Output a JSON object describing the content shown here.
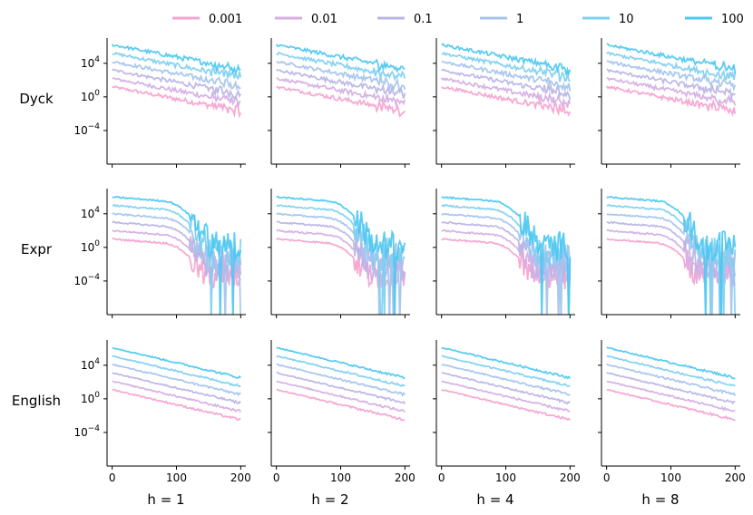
{
  "chart_data": {
    "type": "line",
    "legend": {
      "placement": "top",
      "entries": [
        {
          "name": "0.001",
          "color": "#f5a3cf"
        },
        {
          "name": "0.01",
          "color": "#d4aee3"
        },
        {
          "name": "0.1",
          "color": "#b8b4e6"
        },
        {
          "name": "1",
          "color": "#a4c3ee"
        },
        {
          "name": "10",
          "color": "#7fcff1"
        },
        {
          "name": "100",
          "color": "#4cc8f2"
        }
      ]
    },
    "row_labels": [
      "Dyck",
      "Expr",
      "English"
    ],
    "column_labels": [
      "h = 1",
      "h = 2",
      "h = 4",
      "h = 8"
    ],
    "xlim": [
      -8,
      208
    ],
    "x_ticks": [
      0,
      100,
      200
    ],
    "ylim_log10": [
      -8,
      7
    ],
    "y_ticks": [
      {
        "base": "10",
        "exp": "4",
        "value": 4
      },
      {
        "base": "10",
        "exp": "0",
        "value": 0
      },
      {
        "base": "10",
        "exp": "−4",
        "value": -4
      }
    ],
    "series_offset_log10": [
      0,
      1,
      2,
      3,
      4,
      5
    ],
    "rows": [
      {
        "name": "Dyck",
        "start": 1.2,
        "end": -1.7,
        "noise": 0.7
      },
      {
        "name": "Expr",
        "start": 1.0,
        "mid": -0.3,
        "tail_drop_start": 80,
        "tail_floor": -5.5,
        "noise": 1.6,
        "spikes": true
      },
      {
        "name": "English",
        "start": 1.1,
        "end": -2.5,
        "noise": 0.25
      }
    ]
  }
}
